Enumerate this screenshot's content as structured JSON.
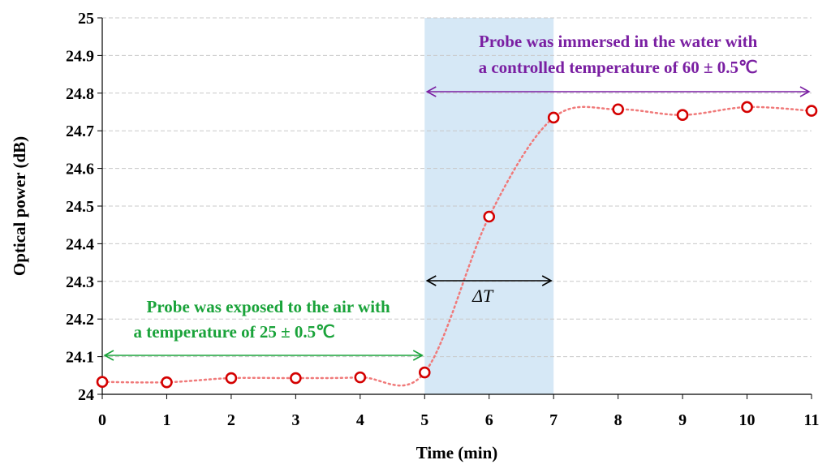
{
  "chart_data": {
    "type": "scatter",
    "xlabel": "Time (min)",
    "ylabel": "Optical power (dB)",
    "xlim": [
      0,
      11
    ],
    "ylim": [
      24,
      25
    ],
    "x_ticks": [
      "0",
      "1",
      "2",
      "3",
      "4",
      "5",
      "6",
      "7",
      "8",
      "9",
      "10",
      "11"
    ],
    "y_ticks": [
      "24",
      "24.1",
      "24.2",
      "24.3",
      "24.4",
      "24.5",
      "24.6",
      "24.7",
      "24.8",
      "24.9",
      "25"
    ],
    "grid": "horizontal dashed",
    "x": [
      0,
      1,
      2,
      3,
      4,
      5,
      6,
      7,
      8,
      9,
      10,
      11
    ],
    "y": [
      24.033,
      24.032,
      24.043,
      24.043,
      24.045,
      24.058,
      24.472,
      24.735,
      24.757,
      24.742,
      24.763,
      24.753
    ],
    "marker_color": "#d40000",
    "line_color": "#f07a7a",
    "shaded_region": {
      "x_start": 5,
      "x_end": 7,
      "color": "#d6e8f6"
    },
    "annotations": {
      "air": {
        "line1": "Probe was exposed to the air with",
        "line2": "a temperature of 25 ± 0.5℃",
        "color": "#1aa33a",
        "arrow_x": [
          0,
          5
        ]
      },
      "water": {
        "line1": "Probe was immersed in the water with",
        "line2": "a controlled temperature of 60 ± 0.5℃",
        "color": "#7a1fa2",
        "arrow_x": [
          5,
          11
        ]
      },
      "delta": {
        "label": "ΔT",
        "arrow_x": [
          5,
          7
        ]
      }
    }
  }
}
